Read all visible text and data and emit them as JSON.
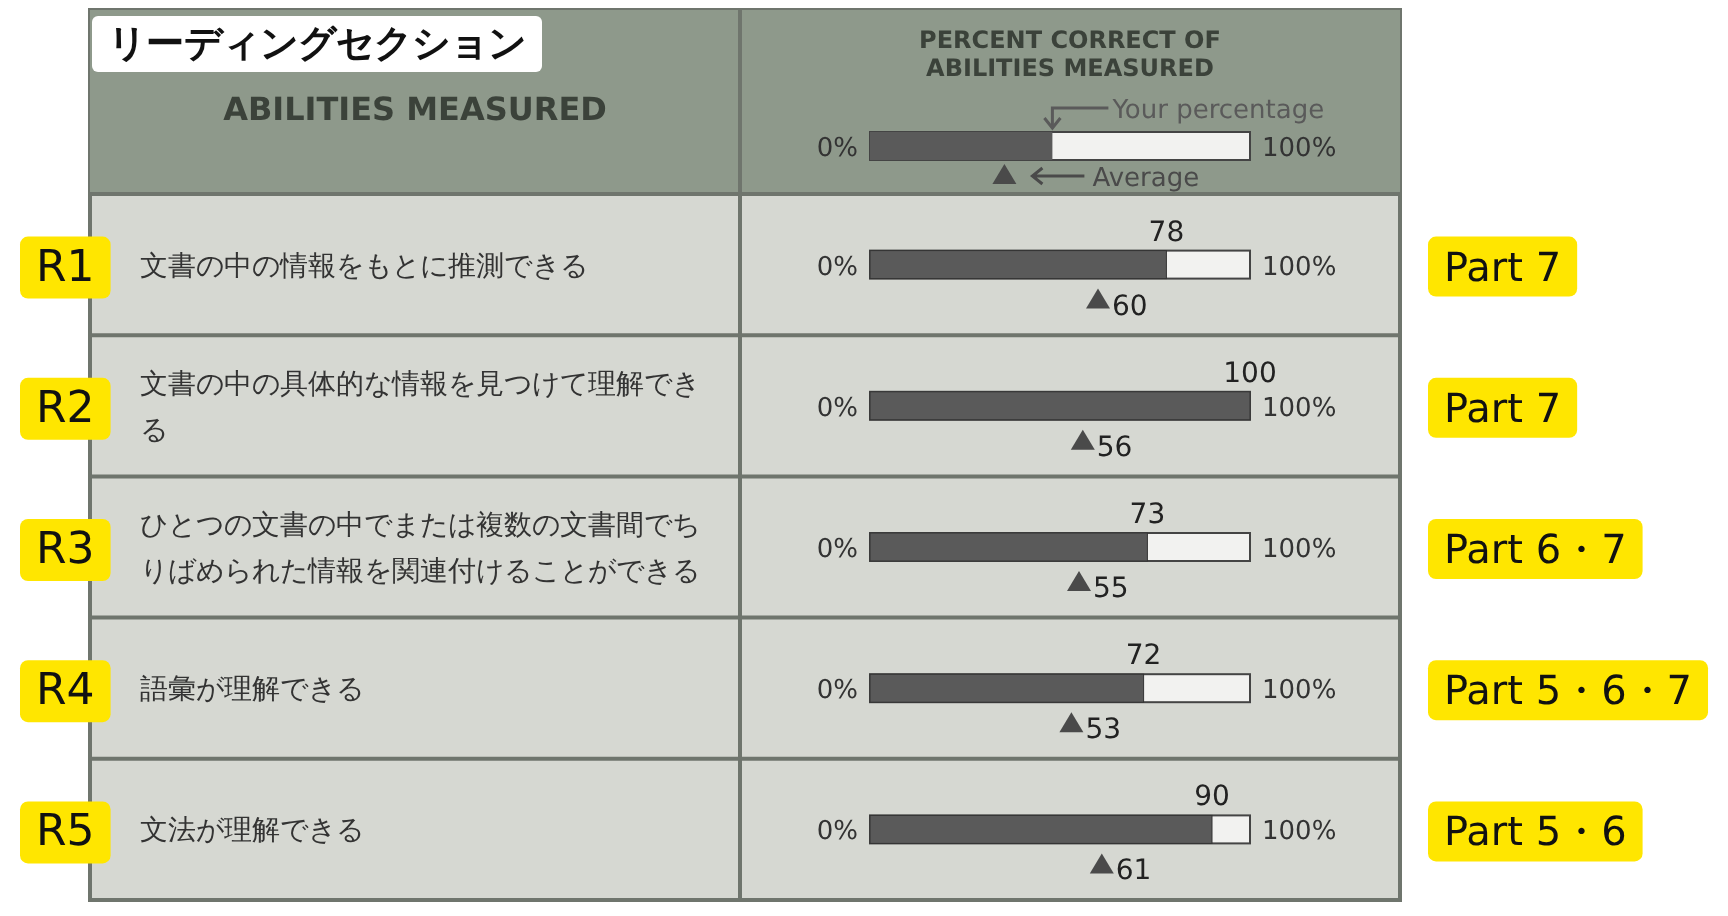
{
  "chart_data": {
    "type": "bar",
    "orientation": "horizontal",
    "title": "リーディングセクション",
    "ylabel": "ABILITIES MEASURED",
    "xlabel": "PERCENT CORRECT OF ABILITIES MEASURED",
    "categories": [
      "文書の中の情報をもとに推測できる",
      "文書の中の具体的な情報を見つけて理解できる",
      "ひとつの文書の中でまたは複数の文書間でちりばめられた情報を関連付けることができる",
      "語彙が理解できる",
      "文法が理解できる"
    ],
    "bands": [
      {
        "axis": "x",
        "from": 0,
        "to": 100
      }
    ],
    "series": [
      {
        "name": "Your percentage",
        "color": "#5a5a5a",
        "values": [
          78,
          100,
          73,
          72,
          90
        ]
      },
      {
        "name": "Average",
        "type": "scatter",
        "marker": "triangle",
        "color": "#4a4a4a",
        "values": [
          60,
          56,
          55,
          53,
          61
        ]
      }
    ],
    "data_labels": true,
    "legend": "top",
    "annotations": [
      "R1",
      "Part 7",
      "R2",
      "Part 7",
      "R3",
      "Part 6・7",
      "R4",
      "Part 5・6・7",
      "R5",
      "Part 5・6",
      "0%",
      "100%"
    ]
  }
}
